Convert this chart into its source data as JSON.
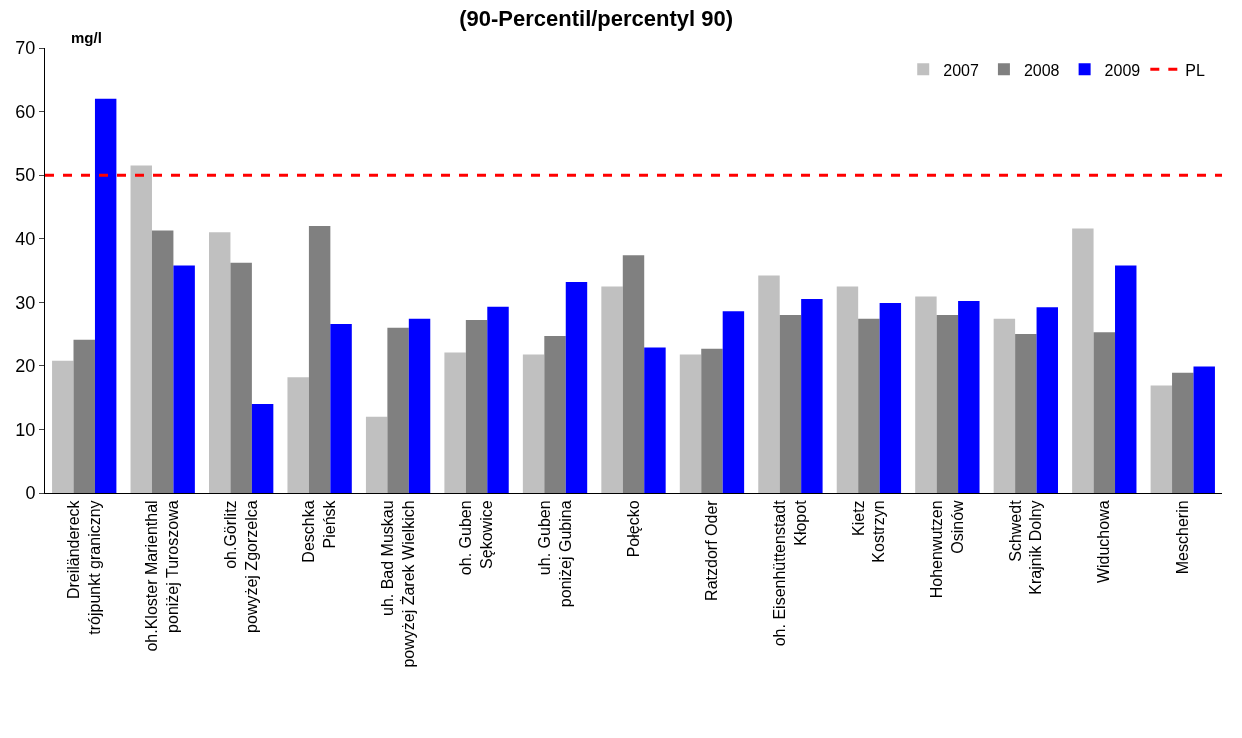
{
  "chart_data": {
    "type": "bar",
    "title": "(90-Percentil/percentyl 90)",
    "ylabel": "mg/l",
    "categories": [
      "Dreiländereck\ntrójpunkt graniczny",
      "oh.Kloster Marienthal\nponiżej Turoszowa",
      "oh.Görlitz\npowyżej Zgorzelca",
      "Deschka\nPieńsk",
      "uh. Bad Muskau\npowyżej Żarek Wielkich",
      "oh. Guben\nSękowice",
      "uh. Guben\nponiżej Gubina",
      "Połęcko",
      "Ratzdorf Oder",
      "oh. Eisenhüttenstadt\nKłopot",
      "Kietz\nKostrzyn",
      "Hohenwutzen\nOsinów",
      "Schwedt\nKrajnik Dolny",
      "Widuchowa",
      "Mescherin"
    ],
    "series": [
      {
        "name": "2007",
        "color": "#c0c0c0",
        "values": [
          20.8,
          51.5,
          41,
          18.2,
          12,
          22.1,
          21.8,
          32.5,
          21.8,
          34.2,
          32.5,
          30.9,
          27.4,
          41.6,
          16.9
        ]
      },
      {
        "name": "2008",
        "color": "#808080",
        "values": [
          24.1,
          41.3,
          36.2,
          42,
          26,
          27.2,
          24.7,
          37.4,
          22.7,
          28,
          27.4,
          28,
          25,
          25.3,
          18.9
        ]
      },
      {
        "name": "2009",
        "color": "#0000ff",
        "values": [
          62,
          35.8,
          14,
          26.6,
          27.4,
          29.3,
          33.2,
          22.9,
          28.6,
          30.5,
          29.9,
          30.2,
          29.2,
          35.8,
          19.9
        ]
      }
    ],
    "ref_lines": [
      {
        "axis": "y",
        "value": 50,
        "label": "PL",
        "color": "#ff0000",
        "line_style": "dashed"
      }
    ],
    "ylim": [
      0,
      70
    ],
    "yticks": [
      0,
      10,
      20,
      30,
      40,
      50,
      60,
      70
    ],
    "grid": false,
    "legend": "top right"
  }
}
